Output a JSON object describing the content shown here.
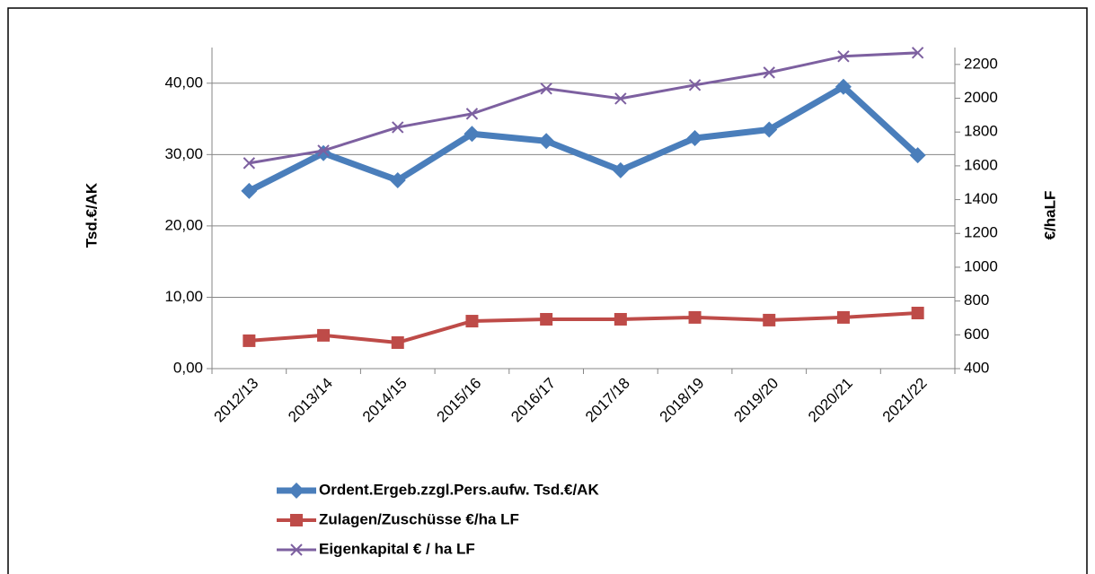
{
  "chart_data": {
    "type": "line",
    "categories": [
      "2012/13",
      "2013/14",
      "2014/15",
      "2015/16",
      "2016/17",
      "2017/18",
      "2018/19",
      "2019/20",
      "2020/21",
      "2021/22"
    ],
    "ylabel": "Tsd.€/AK",
    "y2label": "€/haLF",
    "ylim": [
      0,
      45
    ],
    "yticks": [
      {
        "value": 0,
        "label": "0,00"
      },
      {
        "value": 10,
        "label": "10,00"
      },
      {
        "value": 20,
        "label": "20,00"
      },
      {
        "value": 30,
        "label": "30,00"
      },
      {
        "value": 40,
        "label": "40,00"
      }
    ],
    "y2lim": [
      400,
      2300
    ],
    "y2ticks": [
      400,
      600,
      800,
      1000,
      1200,
      1400,
      1600,
      1800,
      2000,
      2200
    ],
    "grid": true,
    "legend": "bottom",
    "series": [
      {
        "name": "Ordent.Ergeb.zzgl.Pers.aufw. Tsd.€/AK",
        "color": "#4a7ebb",
        "marker": "diamond",
        "axis": "y",
        "values": [
          24.9,
          30.2,
          26.4,
          32.9,
          31.9,
          27.8,
          32.3,
          33.5,
          39.5,
          29.9
        ]
      },
      {
        "name": "Zulagen/Zuschüsse €/ha LF",
        "color": "#be4b48",
        "marker": "square",
        "axis": "y2",
        "values": [
          565,
          597,
          554,
          681,
          692,
          692,
          703,
          687,
          703,
          729
        ]
      },
      {
        "name": "Eigenkapital € / ha LF",
        "color": "#7d60a0",
        "marker": "x",
        "axis": "y2",
        "values": [
          1616,
          1690,
          1828,
          1908,
          2057,
          1998,
          2078,
          2152,
          2248,
          2269
        ]
      }
    ]
  }
}
